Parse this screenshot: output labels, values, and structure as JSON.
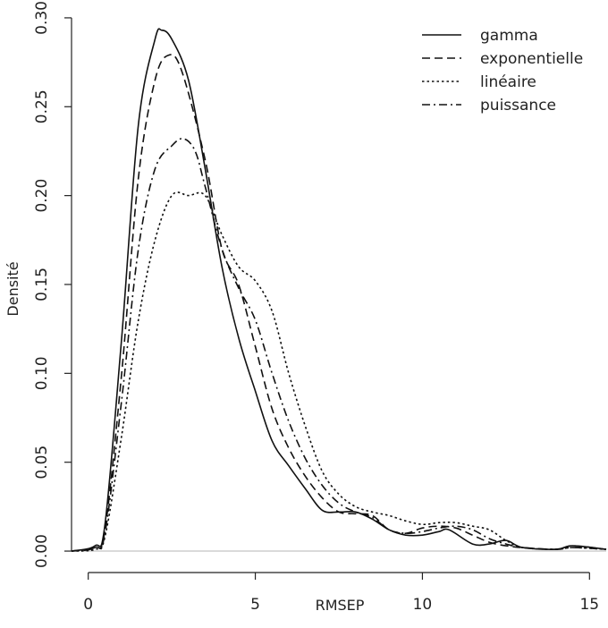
{
  "chart_data": {
    "type": "line",
    "xlabel": "RMSEP",
    "ylabel": "Densité",
    "xlim": [
      -0.5,
      15.5
    ],
    "ylim": [
      -0.003,
      0.305
    ],
    "x_ticks": [
      0,
      5,
      10,
      15
    ],
    "x_tick_labels": [
      "0",
      "5",
      "10",
      "15"
    ],
    "y_ticks": [
      0.0,
      0.05,
      0.1,
      0.15,
      0.2,
      0.25,
      0.3
    ],
    "y_tick_labels": [
      "0.00",
      "0.05",
      "0.10",
      "0.15",
      "0.20",
      "0.25",
      "0.30"
    ],
    "legend_position": "top-right",
    "baseline": 0,
    "series": [
      {
        "name": "gamma",
        "dash": "solid",
        "x": [
          -0.5,
          0.2,
          0.5,
          1.0,
          1.5,
          2.0,
          2.2,
          2.5,
          3.0,
          3.5,
          4.0,
          4.5,
          5.0,
          5.5,
          6.0,
          6.5,
          7.0,
          7.5,
          8.0,
          8.5,
          9.0,
          9.5,
          10.0,
          10.5,
          10.8,
          11.5,
          12.0,
          12.5,
          13.0,
          14.0,
          14.5,
          15.5
        ],
        "y": [
          0.0,
          0.003,
          0.015,
          0.12,
          0.24,
          0.288,
          0.293,
          0.288,
          0.265,
          0.215,
          0.16,
          0.12,
          0.09,
          0.062,
          0.048,
          0.035,
          0.023,
          0.022,
          0.022,
          0.018,
          0.012,
          0.009,
          0.009,
          0.011,
          0.012,
          0.004,
          0.004,
          0.006,
          0.002,
          0.001,
          0.003,
          0.001
        ]
      },
      {
        "name": "exponentielle",
        "dash": "dashed",
        "x": [
          -0.5,
          0.2,
          0.5,
          1.0,
          1.5,
          2.0,
          2.4,
          2.8,
          3.5,
          4.0,
          4.5,
          5.0,
          5.5,
          6.0,
          6.5,
          7.0,
          7.5,
          8.0,
          8.5,
          9.0,
          9.5,
          10.0,
          10.5,
          11.0,
          11.5,
          12.0,
          12.5,
          13.0,
          14.0,
          14.5,
          15.5
        ],
        "y": [
          0.0,
          0.002,
          0.012,
          0.1,
          0.21,
          0.265,
          0.279,
          0.27,
          0.22,
          0.17,
          0.15,
          0.115,
          0.08,
          0.058,
          0.042,
          0.03,
          0.022,
          0.021,
          0.02,
          0.012,
          0.01,
          0.013,
          0.014,
          0.013,
          0.009,
          0.005,
          0.003,
          0.002,
          0.001,
          0.003,
          0.001
        ]
      },
      {
        "name": "linéaire",
        "dash": "dotted",
        "x": [
          -0.5,
          0.2,
          0.5,
          1.0,
          1.5,
          2.0,
          2.5,
          3.0,
          3.5,
          4.0,
          4.5,
          5.0,
          5.5,
          6.0,
          6.5,
          7.0,
          7.5,
          8.0,
          8.5,
          9.0,
          9.5,
          10.0,
          10.5,
          11.0,
          11.5,
          12.0,
          12.5,
          13.0,
          14.0,
          14.5,
          15.5
        ],
        "y": [
          0.0,
          0.001,
          0.008,
          0.065,
          0.13,
          0.175,
          0.2,
          0.2,
          0.2,
          0.178,
          0.16,
          0.152,
          0.135,
          0.1,
          0.07,
          0.045,
          0.032,
          0.025,
          0.022,
          0.02,
          0.017,
          0.015,
          0.016,
          0.016,
          0.014,
          0.012,
          0.006,
          0.002,
          0.001,
          0.002,
          0.001
        ]
      },
      {
        "name": "puissance",
        "dash": "dashdot",
        "x": [
          -0.5,
          0.2,
          0.5,
          1.0,
          1.5,
          2.0,
          2.5,
          2.85,
          3.2,
          3.5,
          4.0,
          4.5,
          5.0,
          5.5,
          6.0,
          6.5,
          7.0,
          7.5,
          8.0,
          8.5,
          9.0,
          9.5,
          10.0,
          10.5,
          11.0,
          11.5,
          12.0,
          12.5,
          13.0,
          14.0,
          14.5,
          15.5
        ],
        "y": [
          0.0,
          0.002,
          0.01,
          0.085,
          0.17,
          0.215,
          0.228,
          0.232,
          0.225,
          0.205,
          0.17,
          0.148,
          0.13,
          0.1,
          0.073,
          0.052,
          0.037,
          0.027,
          0.022,
          0.019,
          0.012,
          0.01,
          0.011,
          0.013,
          0.014,
          0.012,
          0.007,
          0.004,
          0.002,
          0.001,
          0.002,
          0.001
        ]
      }
    ]
  }
}
